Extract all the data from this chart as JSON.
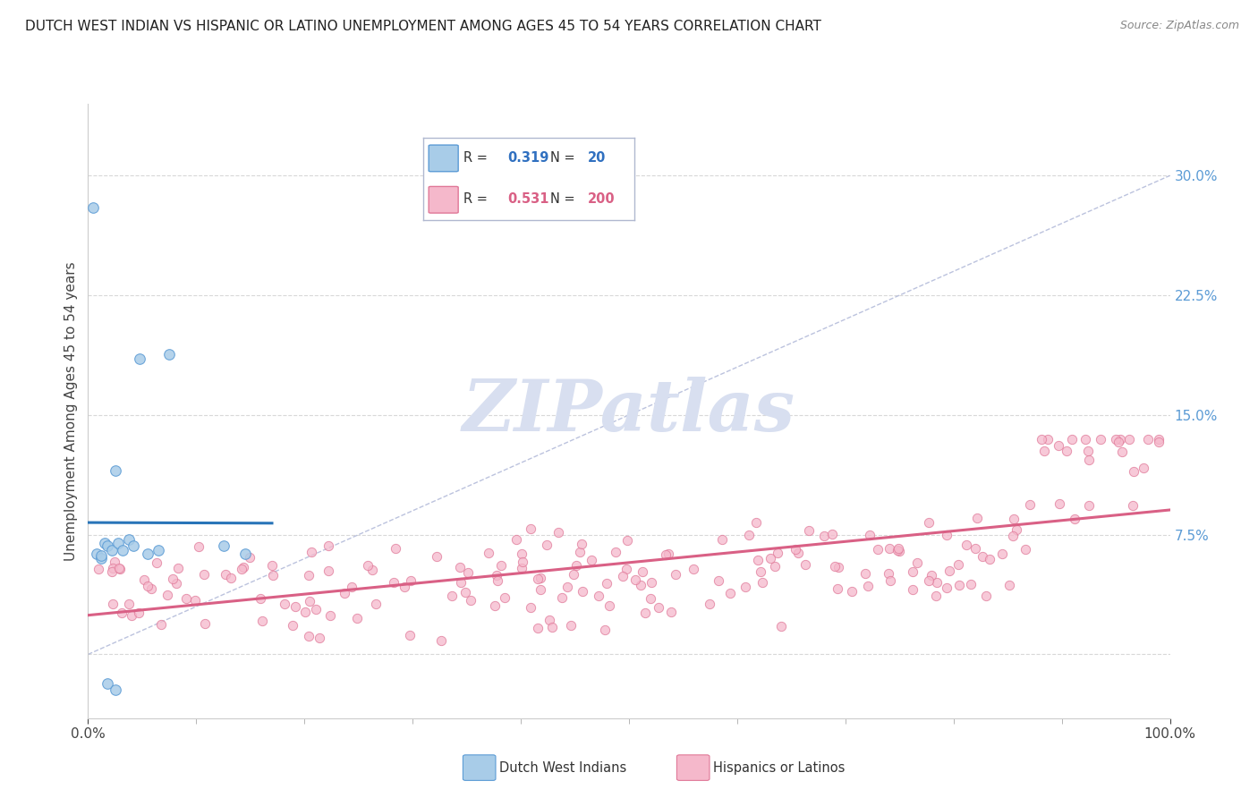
{
  "title": "DUTCH WEST INDIAN VS HISPANIC OR LATINO UNEMPLOYMENT AMONG AGES 45 TO 54 YEARS CORRELATION CHART",
  "source": "Source: ZipAtlas.com",
  "ylabel_label": "Unemployment Among Ages 45 to 54 years",
  "ylabel_ticks": [
    0.0,
    0.075,
    0.15,
    0.225,
    0.3
  ],
  "ylabel_tick_labels": [
    "",
    "7.5%",
    "15.0%",
    "22.5%",
    "30.0%"
  ],
  "xlim": [
    0.0,
    1.0
  ],
  "ylim": [
    -0.04,
    0.345
  ],
  "R_blue": 0.319,
  "N_blue": 20,
  "R_pink": 0.531,
  "N_pink": 200,
  "blue_color": "#a8cce8",
  "pink_color": "#f5b8cb",
  "blue_edge_color": "#5b9bd5",
  "pink_edge_color": "#e07898",
  "blue_line_color": "#2874b8",
  "pink_line_color": "#d96085",
  "diag_color": "#b0b8d8",
  "watermark_color": "#d8dff0",
  "legend_label_blue": "Dutch West Indians",
  "legend_label_pink": "Hispanics or Latinos",
  "background_color": "#ffffff",
  "grid_color": "#d8d8d8",
  "title_color": "#222222",
  "source_color": "#888888",
  "tick_color": "#5b9bd5",
  "seed": 42,
  "blue_x": [
    0.005,
    0.008,
    0.012,
    0.015,
    0.018,
    0.022,
    0.025,
    0.028,
    0.032,
    0.038,
    0.042,
    0.048,
    0.055,
    0.065,
    0.075,
    0.125,
    0.145,
    0.018,
    0.025,
    0.012
  ],
  "blue_y": [
    0.28,
    0.063,
    0.06,
    0.07,
    0.068,
    0.065,
    0.115,
    0.07,
    0.065,
    0.072,
    0.068,
    0.185,
    0.063,
    0.065,
    0.188,
    0.068,
    0.063,
    -0.018,
    -0.022,
    0.062
  ]
}
